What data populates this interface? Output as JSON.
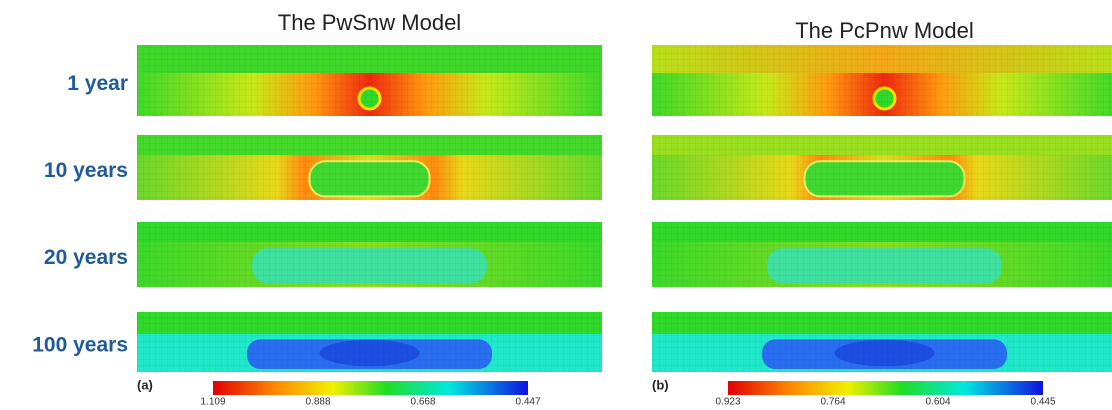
{
  "rows": [
    "1 year",
    "10 years",
    "20 years",
    "100 years"
  ],
  "panels": [
    {
      "title": "The PwSnw Model",
      "label": "(a)",
      "colorbar": [
        "1.109",
        "0.888",
        "0.668",
        "0.447"
      ]
    },
    {
      "title": "The PcPnw Model",
      "label": "(b)",
      "colorbar": [
        "0.923",
        "0.764",
        "0.604",
        "0.445"
      ]
    }
  ]
}
